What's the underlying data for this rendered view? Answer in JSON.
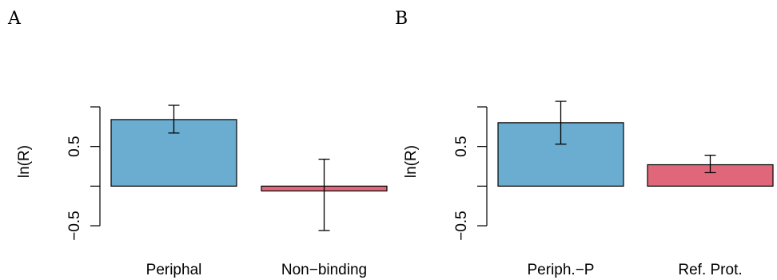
{
  "chart_data": [
    {
      "type": "bar",
      "panel_label": "A",
      "categories": [
        "Periphal",
        "Non−binding"
      ],
      "values": [
        0.84,
        -0.06
      ],
      "error_low": [
        0.67,
        -0.56
      ],
      "error_high": [
        1.02,
        0.34
      ],
      "ylabel": "ln(R)",
      "yticks": [
        -0.5,
        0.5
      ],
      "ytick_labels": [
        "−0.5",
        "0.5"
      ],
      "ylim": [
        -0.5,
        1.0
      ],
      "bar_colors": [
        "#6aadd0",
        "#e0677a"
      ],
      "grid": false
    },
    {
      "type": "bar",
      "panel_label": "B",
      "categories": [
        "Periph.−P",
        "Ref. Prot."
      ],
      "values": [
        0.8,
        0.27
      ],
      "error_low": [
        0.53,
        0.17
      ],
      "error_high": [
        1.07,
        0.39
      ],
      "ylabel": "ln(R)",
      "yticks": [
        -0.5,
        0.5
      ],
      "ytick_labels": [
        "−0.5",
        "0.5"
      ],
      "ylim": [
        -0.5,
        1.0
      ],
      "bar_colors": [
        "#6aadd0",
        "#e0677a"
      ],
      "grid": false
    }
  ]
}
